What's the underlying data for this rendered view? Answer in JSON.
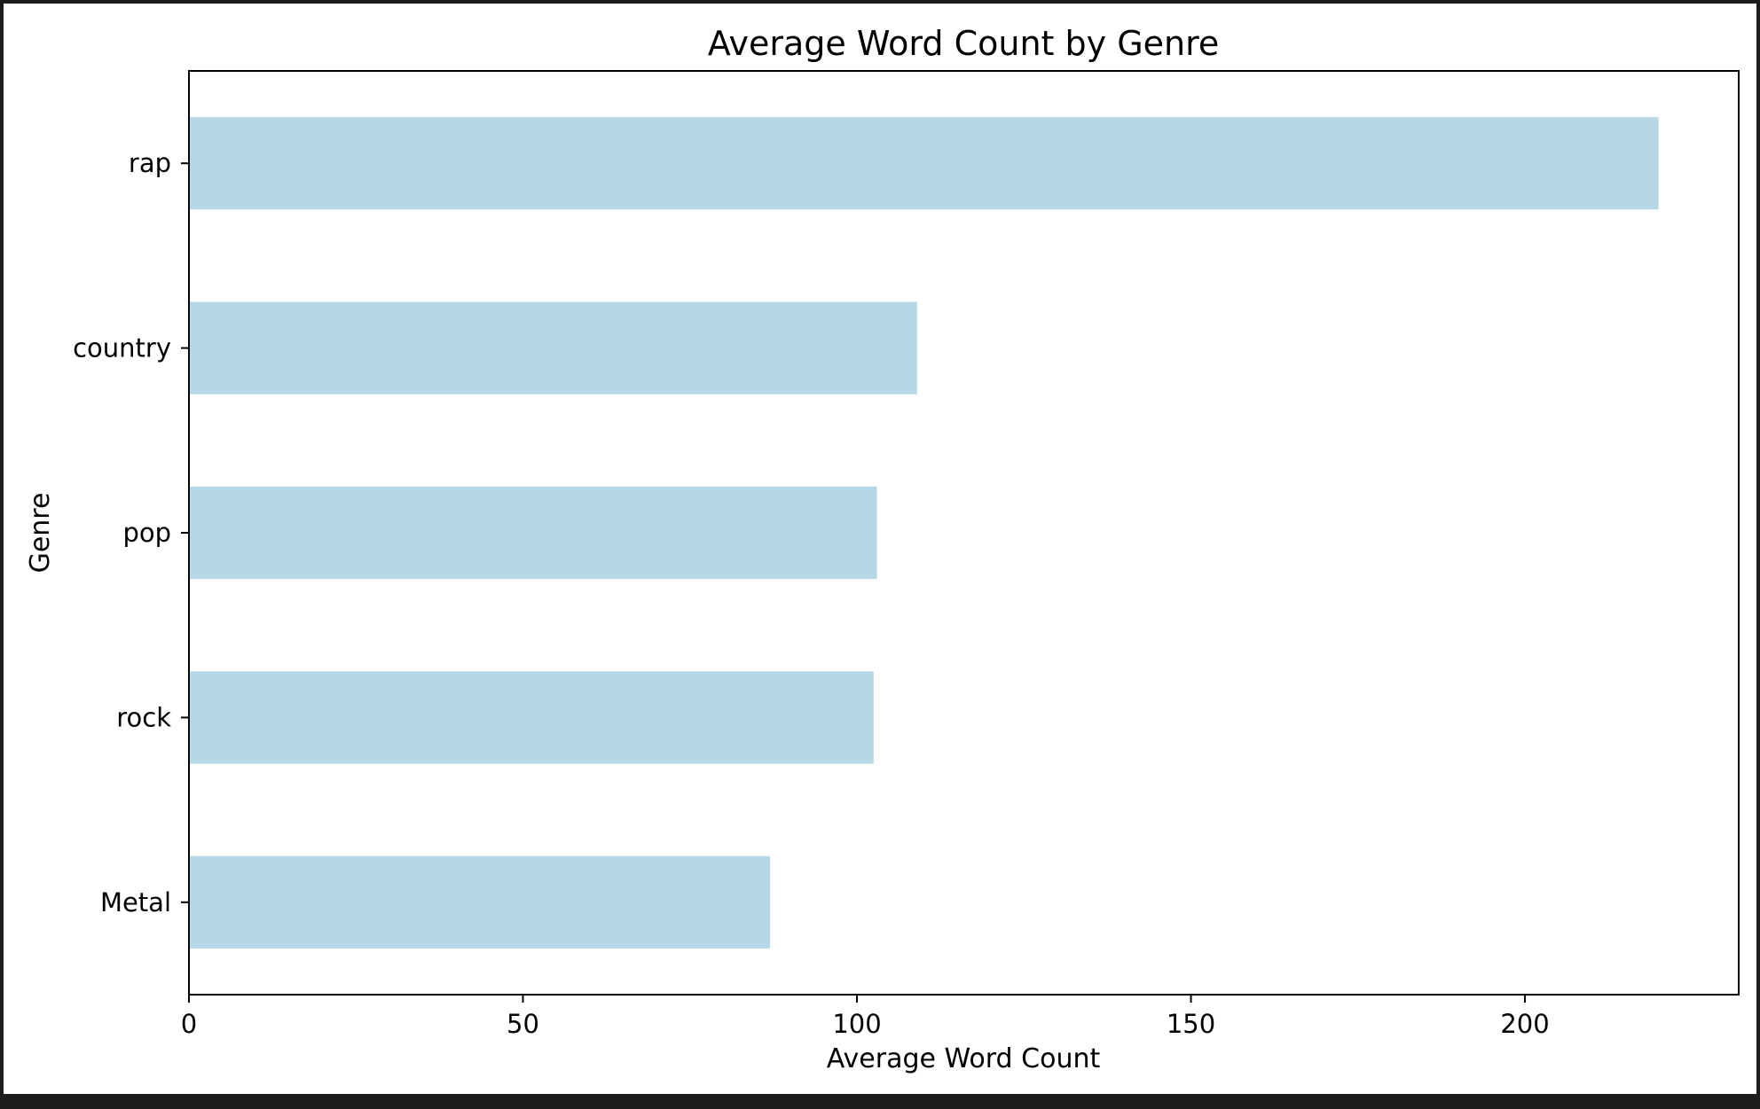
{
  "colors": {
    "bar": "#b6d7e6",
    "axes": "#000000",
    "figure_background": "#ffffff",
    "frame": "#1c1c1c"
  },
  "chart_data": {
    "type": "bar",
    "orientation": "horizontal",
    "title": "Average Word Count by Genre",
    "xlabel": "Average Word Count",
    "ylabel": "Genre",
    "categories": [
      "rap",
      "country",
      "pop",
      "rock",
      "Metal"
    ],
    "values": [
      220,
      109,
      103,
      102.5,
      87
    ],
    "xlim": [
      0,
      232
    ],
    "xticks": [
      0,
      50,
      100,
      150,
      200
    ],
    "grid": false,
    "legend": "none"
  }
}
